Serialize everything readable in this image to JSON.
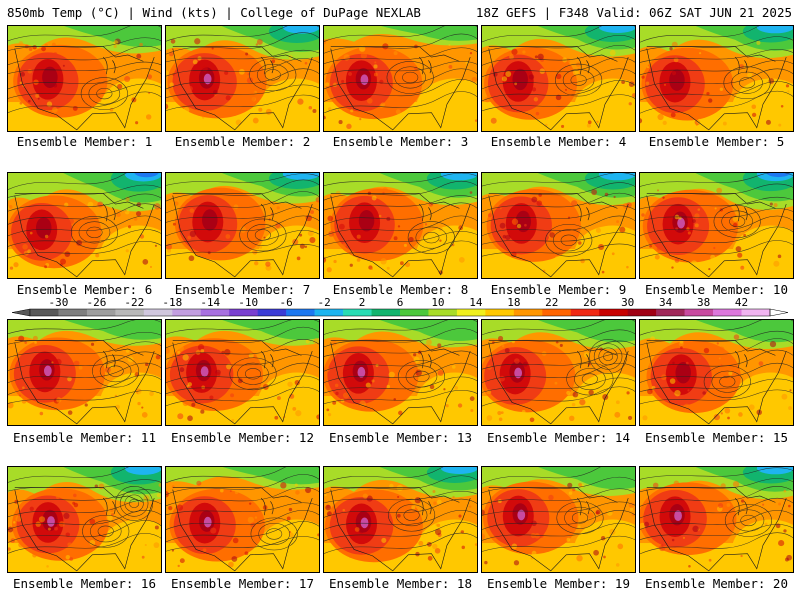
{
  "header": {
    "left_title": "850mb Temp (°C) | Wind (kts) | College of DuPage NEXLAB",
    "right_title": "18Z GEFS | F348 Valid: 06Z SAT JUN 21 2025"
  },
  "members": [
    {
      "label": "Ensemble Member: 1",
      "hue": 0.55,
      "cool": 0.35,
      "low": 0
    },
    {
      "label": "Ensemble Member: 2",
      "hue": 0.75,
      "cool": 0.55,
      "low": 0
    },
    {
      "label": "Ensemble Member: 3",
      "hue": 0.65,
      "cool": 0.1,
      "low": 0
    },
    {
      "label": "Ensemble Member: 4",
      "hue": 0.5,
      "cool": 0.45,
      "low": 0
    },
    {
      "label": "Ensemble Member: 5",
      "hue": 0.45,
      "cool": 0.5,
      "low": 0
    },
    {
      "label": "Ensemble Member: 6",
      "hue": 0.55,
      "cool": 0.7,
      "low": 0
    },
    {
      "label": "Ensemble Member: 7",
      "hue": 0.4,
      "cool": 0.45,
      "low": 0
    },
    {
      "label": "Ensemble Member: 8",
      "hue": 0.5,
      "cool": 0.5,
      "low": 0
    },
    {
      "label": "Ensemble Member: 9",
      "hue": 0.55,
      "cool": 0.5,
      "low": 0
    },
    {
      "label": "Ensemble Member: 10",
      "hue": 0.6,
      "cool": 0.65,
      "low": 0
    },
    {
      "label": "Ensemble Member: 11",
      "hue": 0.6,
      "cool": 0.3,
      "low": 0
    },
    {
      "label": "Ensemble Member: 12",
      "hue": 0.7,
      "cool": 0.3,
      "low": 0
    },
    {
      "label": "Ensemble Member: 13",
      "hue": 0.6,
      "cool": 0.35,
      "low": 0
    },
    {
      "label": "Ensemble Member: 14",
      "hue": 0.6,
      "cool": 0.4,
      "low": 1
    },
    {
      "label": "Ensemble Member: 15",
      "hue": 0.55,
      "cool": 0.4,
      "low": 0
    },
    {
      "label": "Ensemble Member: 16",
      "hue": 0.65,
      "cool": 0.6,
      "low": 1
    },
    {
      "label": "Ensemble Member: 17",
      "hue": 0.6,
      "cool": 0.2,
      "low": 0
    },
    {
      "label": "Ensemble Member: 18",
      "hue": 0.7,
      "cool": 0.45,
      "low": 0
    },
    {
      "label": "Ensemble Member: 19",
      "hue": 0.6,
      "cool": 0.4,
      "low": 0
    },
    {
      "label": "Ensemble Member: 20",
      "hue": 0.7,
      "cool": 0.5,
      "low": 0
    }
  ],
  "colorbar": {
    "ticks": [
      "-30",
      "-26",
      "-22",
      "-18",
      "-14",
      "-10",
      "-6",
      "-2",
      "2",
      "6",
      "10",
      "14",
      "18",
      "22",
      "26",
      "30",
      "34",
      "38",
      "42"
    ],
    "colors": [
      "#595959",
      "#7f7f7f",
      "#9e9e9e",
      "#b8b8b8",
      "#d0c7de",
      "#c29ee0",
      "#a870e0",
      "#7a3fd0",
      "#3c3cd6",
      "#1e78f0",
      "#1eb4f0",
      "#28dcb4",
      "#12b46e",
      "#4cc83c",
      "#a8dc28",
      "#f0f01e",
      "#ffc800",
      "#ff9600",
      "#ff6400",
      "#f02814",
      "#c80000",
      "#a00014",
      "#a0285a",
      "#c84ba0",
      "#dc78dc",
      "#f0b4f0"
    ]
  },
  "palette": {
    "warm": [
      "#ffc800",
      "#ff9600",
      "#ff6e00",
      "#f03c14",
      "#d20a0a",
      "#aa0014"
    ],
    "cool": [
      "#a8dc28",
      "#4cc83c",
      "#12b46e",
      "#28dcb4",
      "#1eb4f0",
      "#1e78f0"
    ],
    "extreme": "#c84ba0"
  }
}
